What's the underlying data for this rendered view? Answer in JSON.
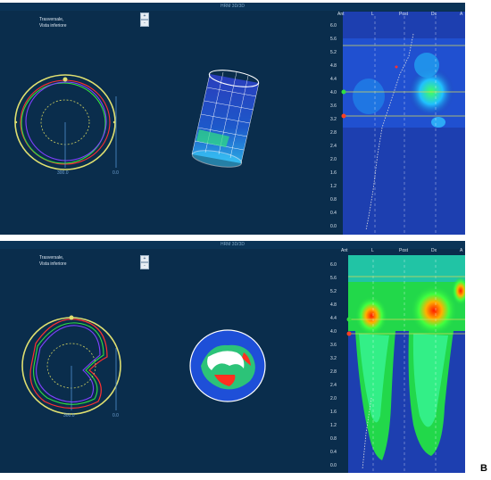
{
  "panel_a": {
    "window_title": "HRM 3D/3D",
    "view_label": [
      "Trasversale,",
      "Vista inferiore"
    ],
    "btn_up": "+",
    "btn_down": "-",
    "scale_left": "300.0",
    "scale_right": "0.0",
    "headers": [
      "Ant",
      "L",
      "Post",
      "Dx",
      "A"
    ],
    "yticks": [
      "6.0",
      "5.6",
      "5.2",
      "4.8",
      "4.4",
      "4.0",
      "3.6",
      "3.2",
      "2.8",
      "2.4",
      "2.0",
      "1.6",
      "1.2",
      "0.8",
      "0.4",
      "0.0"
    ]
  },
  "panel_b": {
    "window_title": "HRM 3D/3D",
    "view_label": [
      "Trasversale,",
      "Vista inferiore"
    ],
    "btn_up": "+",
    "btn_down": "-",
    "scale_left": "300.0",
    "scale_right": "0.0",
    "headers": [
      "Ant",
      "L",
      "Post",
      "Dx",
      "A"
    ],
    "yticks": [
      "6.0",
      "5.6",
      "5.2",
      "4.8",
      "4.4",
      "4.0",
      "3.6",
      "3.2",
      "2.8",
      "2.4",
      "2.0",
      "1.6",
      "1.2",
      "0.8",
      "0.4",
      "0.0"
    ]
  },
  "figure_label": "B",
  "colors": {
    "background": "#0a2d4c",
    "plot_background": "#1d3fb0",
    "pressure_high": "#ff1a00",
    "pressure_mid": "#22d84a",
    "marker_line": "#d6d85a"
  }
}
